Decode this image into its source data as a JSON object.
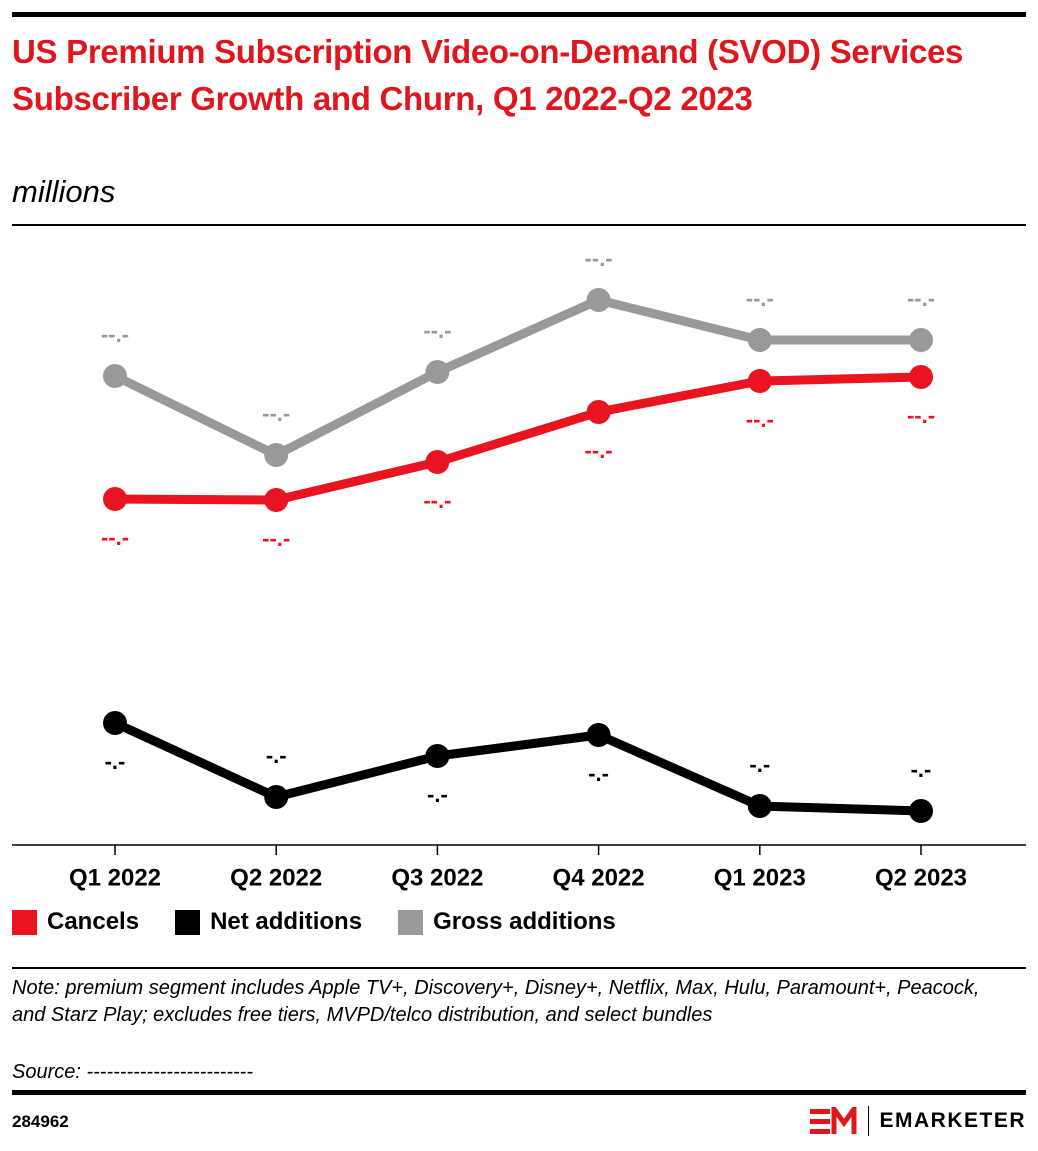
{
  "chart_data": {
    "type": "line",
    "title": "US Premium Subscription Video-on-Demand (SVOD) Services Subscriber Growth and Churn, Q1 2022-Q2 2023",
    "subtitle": "millions",
    "categories": [
      "Q1 2022",
      "Q2 2022",
      "Q3 2022",
      "Q4 2022",
      "Q1 2023",
      "Q2 2023"
    ],
    "ylim": [
      0,
      12
    ],
    "series": [
      {
        "name": "Cancels",
        "color": "#e8141f",
        "values": [
          6.92,
          6.9,
          7.66,
          8.66,
          9.28,
          9.36
        ],
        "value_labels": [
          "--.-",
          "--.-",
          "--.-",
          "--.-",
          "--.-",
          "--.-"
        ]
      },
      {
        "name": "Net additions",
        "color": "#000000",
        "values": [
          2.44,
          0.96,
          1.78,
          2.2,
          0.78,
          0.68
        ],
        "value_labels": [
          "-.-",
          "-.-",
          "-.-",
          "-.-",
          "-.-",
          "-.-"
        ]
      },
      {
        "name": "Gross additions",
        "color": "#999999",
        "values": [
          9.38,
          7.8,
          9.46,
          10.9,
          10.1,
          10.1
        ],
        "value_labels": [
          "--.-",
          "--.-",
          "--.-",
          "--.-",
          "--.-",
          "--.-"
        ]
      }
    ],
    "note": "Note: premium segment includes Apple TV+, Discovery+, Disney+, Netflix, Max, Hulu, Paramount+, Peacock, and Starz Play; excludes free tiers, MVPD/telco distribution, and select bundles",
    "source": "Source: -------------------------",
    "chart_id": "284962",
    "brand": "EMARKETER"
  }
}
